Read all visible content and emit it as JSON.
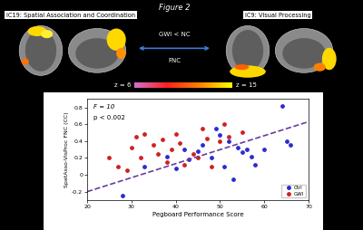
{
  "header": {
    "figure_label": "Figure 2",
    "left_panel": "IC19: Spatial Association and Coordination",
    "right_panel": "IC9: Visual Processing",
    "connection": [
      "GWI < NC",
      "FNC"
    ],
    "scale_labels": [
      "z = 6",
      "z = 15"
    ]
  },
  "chart_data": {
    "type": "scatter",
    "xlabel": "Pegboard Performance Score",
    "ylabel": "SpatAsso-VisProc FNC (CC)",
    "annotations": [
      "F = 10",
      "p < 0.002"
    ],
    "xlim": [
      20,
      70
    ],
    "xticks": [
      20,
      30,
      40,
      50,
      60,
      70
    ],
    "ylim": [
      -0.3,
      0.9
    ],
    "yticks": [
      {
        "value": -0.2,
        "label": "-0.2"
      },
      0,
      0.2,
      0.4,
      0.6,
      0.8
    ],
    "legend": "lower right",
    "series": [
      {
        "name": "Ctrl",
        "color": "#2b2bd0",
        "marker": "o",
        "x": [
          28,
          33,
          38,
          40,
          42,
          43,
          45,
          46,
          48,
          49,
          50,
          51,
          52,
          53,
          54,
          55,
          56,
          57,
          58,
          60,
          64,
          65,
          66
        ],
        "values": [
          -0.25,
          0.1,
          0.22,
          0.08,
          0.3,
          0.18,
          0.28,
          0.35,
          0.2,
          0.55,
          0.47,
          0.1,
          0.4,
          -0.05,
          0.32,
          0.27,
          0.3,
          0.22,
          0.12,
          0.3,
          0.82,
          0.4,
          0.35
        ]
      },
      {
        "name": "GWI",
        "color": "#d02020",
        "marker": "o",
        "x": [
          25,
          27,
          29,
          30,
          31,
          32,
          33,
          35,
          36,
          37,
          38,
          39,
          40,
          41,
          42,
          44,
          45,
          46,
          47,
          48,
          50,
          51,
          52,
          55
        ],
        "values": [
          0.2,
          0.1,
          0.05,
          0.32,
          0.45,
          0.2,
          0.48,
          0.35,
          0.25,
          0.42,
          0.15,
          0.3,
          0.48,
          0.38,
          0.12,
          0.25,
          0.2,
          0.55,
          0.43,
          0.1,
          0.4,
          0.6,
          0.45,
          0.5
        ]
      }
    ],
    "fit": {
      "x": [
        20,
        70
      ],
      "values": [
        -0.2,
        0.63
      ],
      "color": "#6a3d9a",
      "line_style": "dashed"
    }
  }
}
